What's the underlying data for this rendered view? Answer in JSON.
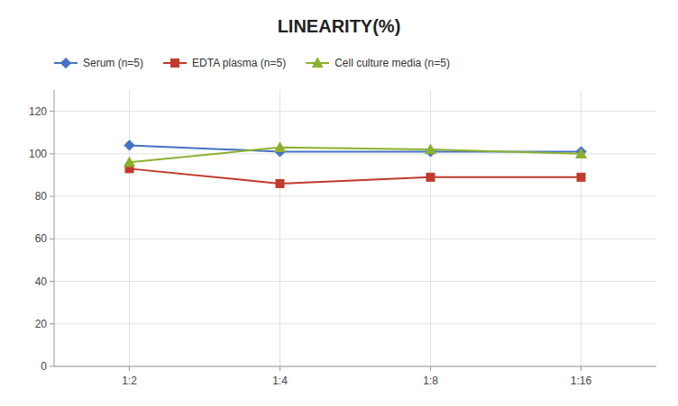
{
  "chart_data": {
    "type": "line",
    "title": "LINEARITY(%)",
    "categories": [
      "1:2",
      "1:4",
      "1:8",
      "1:16"
    ],
    "series": [
      {
        "name": "Serum (n=5)",
        "color": "#4472C4",
        "marker": "diamond",
        "values": [
          104,
          101,
          101,
          101
        ]
      },
      {
        "name": "EDTA plasma (n=5)",
        "color": "#C0392B",
        "marker": "square",
        "values": [
          93,
          86,
          89,
          89
        ]
      },
      {
        "name": "Cell culture media (n=5)",
        "color": "#8DB030",
        "marker": "triangle",
        "values": [
          96,
          103,
          102,
          100
        ]
      }
    ],
    "ylim": [
      0,
      130
    ],
    "yticks": [
      0,
      20,
      40,
      60,
      80,
      100,
      120
    ],
    "grid": true,
    "legend": "top"
  }
}
